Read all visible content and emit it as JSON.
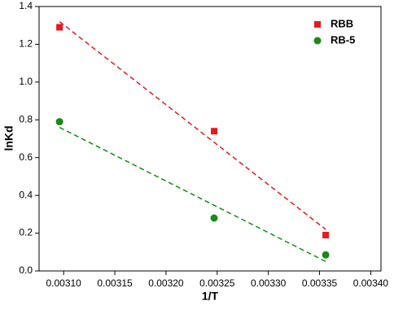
{
  "chart_data": {
    "type": "scatter",
    "x_label": "1/T",
    "y_label": "lnKd",
    "xlim": [
      0.003076,
      0.00341
    ],
    "ylim": [
      0,
      1.4
    ],
    "xticks": [
      {
        "value": 0.0031,
        "label": "0.00310"
      },
      {
        "value": 0.00315,
        "label": "0.00315"
      },
      {
        "value": 0.0032,
        "label": "0.00320"
      },
      {
        "value": 0.00325,
        "label": "0.00325"
      },
      {
        "value": 0.0033,
        "label": "0.00330"
      },
      {
        "value": 0.00335,
        "label": "0.00335"
      },
      {
        "value": 0.0034,
        "label": "0.00340"
      }
    ],
    "yticks": [
      {
        "value": 0,
        "label": "0.0"
      },
      {
        "value": 0.2,
        "label": "0.2"
      },
      {
        "value": 0.4,
        "label": "0.4"
      },
      {
        "value": 0.6,
        "label": "0.6"
      },
      {
        "value": 0.8,
        "label": "0.8"
      },
      {
        "value": 1.0,
        "label": "1.0"
      },
      {
        "value": 1.2,
        "label": "1.2"
      },
      {
        "value": 1.4,
        "label": "1.4"
      }
    ],
    "legend": "upper-right",
    "series": [
      {
        "name": "RBB",
        "color": "#e41a1c",
        "marker": "square",
        "x": [
          0.003096,
          0.003247,
          0.003356
        ],
        "values": [
          1.29,
          0.74,
          0.19
        ]
      },
      {
        "name": "RB-5",
        "color": "#1a8a1a",
        "marker": "circle",
        "x": [
          0.003096,
          0.003247,
          0.003356
        ],
        "values": [
          0.79,
          0.28,
          0.085
        ]
      }
    ],
    "fit_lines": [
      {
        "color": "#e41a1c",
        "x": [
          0.003096,
          0.003356
        ],
        "values": [
          1.32,
          0.22
        ]
      },
      {
        "color": "#1a8a1a",
        "x": [
          0.003096,
          0.003356
        ],
        "values": [
          0.76,
          0.05
        ]
      }
    ]
  }
}
